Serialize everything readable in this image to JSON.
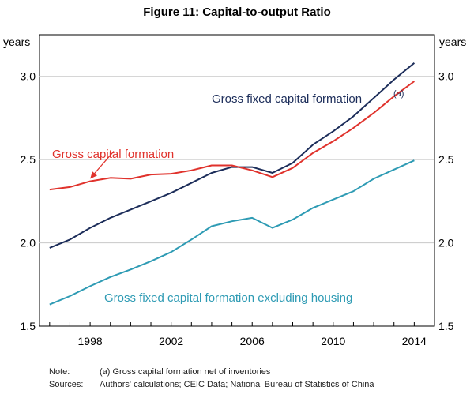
{
  "chart_data": {
    "type": "line",
    "title": "Figure 11: Capital-to-output Ratio",
    "ylabel_left": "years",
    "ylabel_right": "years",
    "ylim": [
      1.5,
      3.25
    ],
    "yticks": [
      1.5,
      2.0,
      2.5,
      3.0
    ],
    "ytick_labels": [
      "1.5",
      "2.0",
      "2.5",
      "3.0"
    ],
    "xlim": [
      1995.5,
      2015
    ],
    "xticks": [
      1998,
      2002,
      2006,
      2010,
      2014
    ],
    "xtick_labels": [
      "1998",
      "2002",
      "2006",
      "2010",
      "2014"
    ],
    "x": [
      1996,
      1997,
      1998,
      1999,
      2000,
      2001,
      2002,
      2003,
      2004,
      2005,
      2006,
      2007,
      2008,
      2009,
      2010,
      2011,
      2012,
      2013,
      2014
    ],
    "series": [
      {
        "name": "Gross fixed capital formation",
        "superscript": "(a)",
        "color": "#1c2d5a",
        "values": [
          1.97,
          2.02,
          2.09,
          2.15,
          2.2,
          2.25,
          2.3,
          2.36,
          2.42,
          2.455,
          2.455,
          2.42,
          2.48,
          2.59,
          2.67,
          2.76,
          2.87,
          2.98,
          3.08
        ]
      },
      {
        "name": "Gross capital formation",
        "color": "#e0322c",
        "values": [
          2.32,
          2.335,
          2.37,
          2.39,
          2.385,
          2.41,
          2.415,
          2.435,
          2.465,
          2.465,
          2.435,
          2.395,
          2.45,
          2.54,
          2.61,
          2.69,
          2.78,
          2.88,
          2.97
        ]
      },
      {
        "name": "Gross fixed capital formation excluding housing",
        "color": "#2e9bb4",
        "values": [
          1.63,
          1.68,
          1.74,
          1.795,
          1.84,
          1.89,
          1.945,
          2.02,
          2.1,
          2.13,
          2.15,
          2.09,
          2.14,
          2.21,
          2.26,
          2.31,
          2.385,
          2.44,
          2.495
        ]
      }
    ],
    "annotation_arrow": {
      "series": 1,
      "x": 1998
    }
  },
  "notes": {
    "note_key": "Note:",
    "note_text": "(a) Gross capital formation net of inventories",
    "sources_key": "Sources:",
    "sources_text": "Authors' calculations; CEIC Data; National Bureau of Statistics of China"
  }
}
